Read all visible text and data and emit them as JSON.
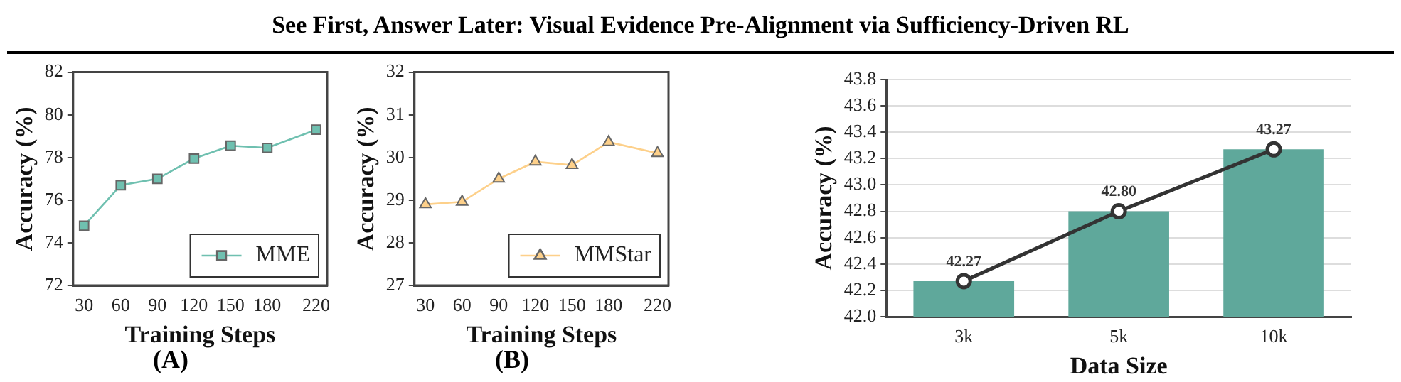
{
  "chart_data": [
    {
      "type": "line",
      "title": "See First, Answer Later: Visual Evidence Pre-Alignment via Sufficiency-Driven RL",
      "xlabel": "Training Steps",
      "ylabel": "Accuracy (%)",
      "annotations": [
        "(A)"
      ],
      "x": [
        30,
        60,
        90,
        120,
        150,
        180,
        220
      ],
      "xlim": [
        21,
        229
      ],
      "xticks": [
        30,
        60,
        90,
        120,
        150,
        180,
        220
      ],
      "ylim": [
        72,
        82
      ],
      "yticks": [
        72,
        74,
        76,
        78,
        80,
        82
      ],
      "series": [
        {
          "name": "MME",
          "color": "#6fc0b0",
          "values": [
            74.8,
            76.7,
            77.0,
            77.95,
            78.55,
            78.45,
            79.3
          ]
        }
      ],
      "marker": "square",
      "legend": "bottom right",
      "grid": false
    },
    {
      "type": "line",
      "xlabel": "Training Steps",
      "ylabel": "Accuracy (%)",
      "annotations": [
        "(B)"
      ],
      "x": [
        30,
        60,
        90,
        120,
        150,
        180,
        220
      ],
      "xlim": [
        21,
        229
      ],
      "xticks": [
        30,
        60,
        90,
        120,
        150,
        180,
        220
      ],
      "ylim": [
        27,
        32
      ],
      "yticks": [
        27,
        28,
        29,
        30,
        31,
        32
      ],
      "series": [
        {
          "name": "MMStar",
          "color": "#fdd08a",
          "values": [
            28.9,
            28.96,
            29.5,
            29.9,
            29.82,
            30.36,
            30.1
          ]
        }
      ],
      "marker": "triangle",
      "legend": "bottom right",
      "grid": false
    },
    {
      "type": "bar",
      "xlabel": "Data Size",
      "ylabel": "Accuracy (%)",
      "categories": [
        "3k",
        "5k",
        "10k"
      ],
      "ylim": [
        42.0,
        43.8
      ],
      "yticks": [
        {
          "value": 42.0,
          "label": "42.0"
        },
        {
          "value": 42.2,
          "label": "42.2"
        },
        {
          "value": 42.4,
          "label": "42.4"
        },
        {
          "value": 42.6,
          "label": "42.6"
        },
        {
          "value": 42.8,
          "label": "42.8"
        },
        {
          "value": 43.0,
          "label": "43.0"
        },
        {
          "value": 43.2,
          "label": "43.2"
        },
        {
          "value": 43.4,
          "label": "43.4"
        },
        {
          "value": 43.6,
          "label": "43.6"
        },
        {
          "value": 43.8,
          "label": "43.8"
        }
      ],
      "series": [
        {
          "type": "bar",
          "color": "#5fa89b",
          "values": [
            42.27,
            42.8,
            43.27
          ]
        },
        {
          "type": "line",
          "color": "#333333",
          "values": [
            42.27,
            42.8,
            43.27
          ],
          "marker": "circle"
        }
      ],
      "value_labels": [
        "42.27",
        "42.80",
        "43.27"
      ],
      "grid": "y",
      "legend": false
    }
  ]
}
